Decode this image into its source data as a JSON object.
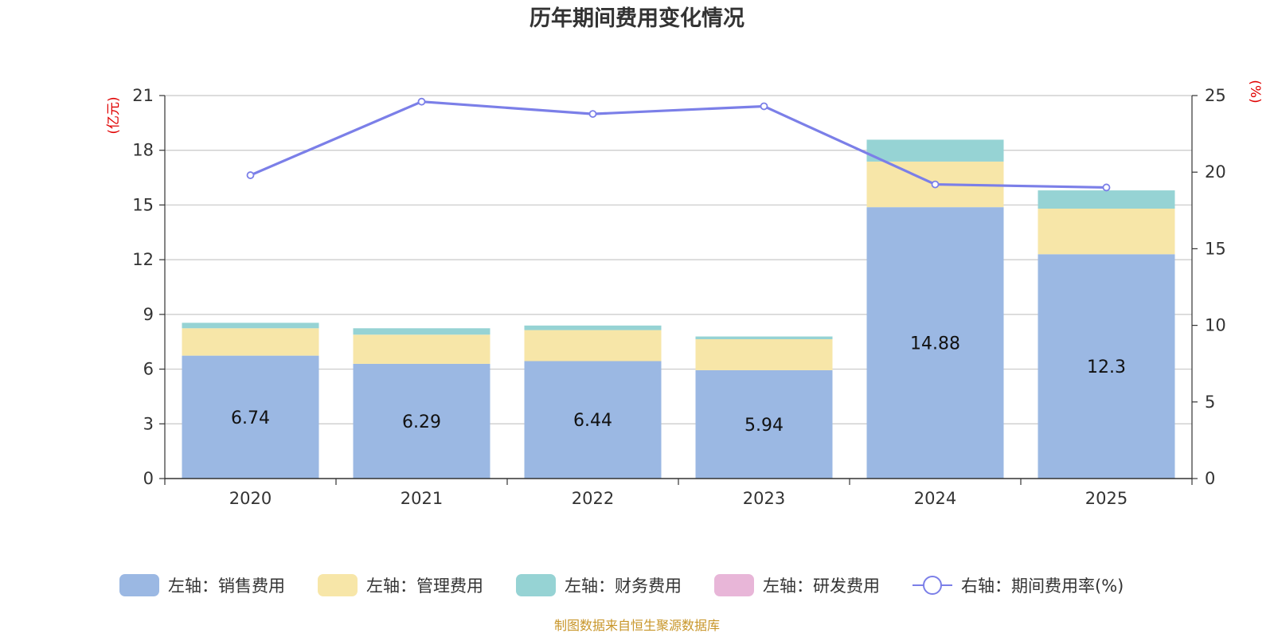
{
  "chart_data": {
    "type": "bar",
    "stacked": true,
    "title": "历年期间费用变化情况",
    "categories": [
      "2020",
      "2021",
      "2022",
      "2023",
      "2024",
      "2025"
    ],
    "left_axis": {
      "unit_label": "(亿元)",
      "min": 0,
      "max": 21,
      "ticks": [
        0,
        3,
        6,
        9,
        12,
        15,
        18,
        21
      ]
    },
    "right_axis": {
      "unit_label": "(%)",
      "min": 0,
      "max": 25,
      "ticks": [
        0,
        5,
        10,
        15,
        20,
        25
      ]
    },
    "series": [
      {
        "name": "左轴：销售费用",
        "axis": "left",
        "kind": "bar",
        "color": "#9bb8e3",
        "values": [
          6.74,
          6.29,
          6.44,
          5.94,
          14.88,
          12.3
        ],
        "show_labels": true
      },
      {
        "name": "左轴：管理费用",
        "axis": "left",
        "kind": "bar",
        "color": "#f7e6a8",
        "values": [
          1.5,
          1.6,
          1.7,
          1.7,
          2.5,
          2.5
        ],
        "show_labels": false
      },
      {
        "name": "左轴：财务费用",
        "axis": "left",
        "kind": "bar",
        "color": "#96d3d4",
        "values": [
          0.3,
          0.35,
          0.25,
          0.15,
          1.2,
          1.0
        ],
        "show_labels": false
      },
      {
        "name": "左轴：研发费用",
        "axis": "left",
        "kind": "bar",
        "color": "#e8b6d8",
        "values": [
          0,
          0,
          0,
          0,
          0,
          0
        ],
        "show_labels": false
      },
      {
        "name": "右轴：期间费用率(%)",
        "axis": "right",
        "kind": "line",
        "color": "#7b7fe8",
        "values": [
          19.8,
          24.6,
          23.8,
          24.3,
          19.2,
          19.0
        ],
        "show_labels": false
      }
    ],
    "legend_position": "bottom",
    "grid": true
  },
  "source": "制图数据来自恒生聚源数据库"
}
